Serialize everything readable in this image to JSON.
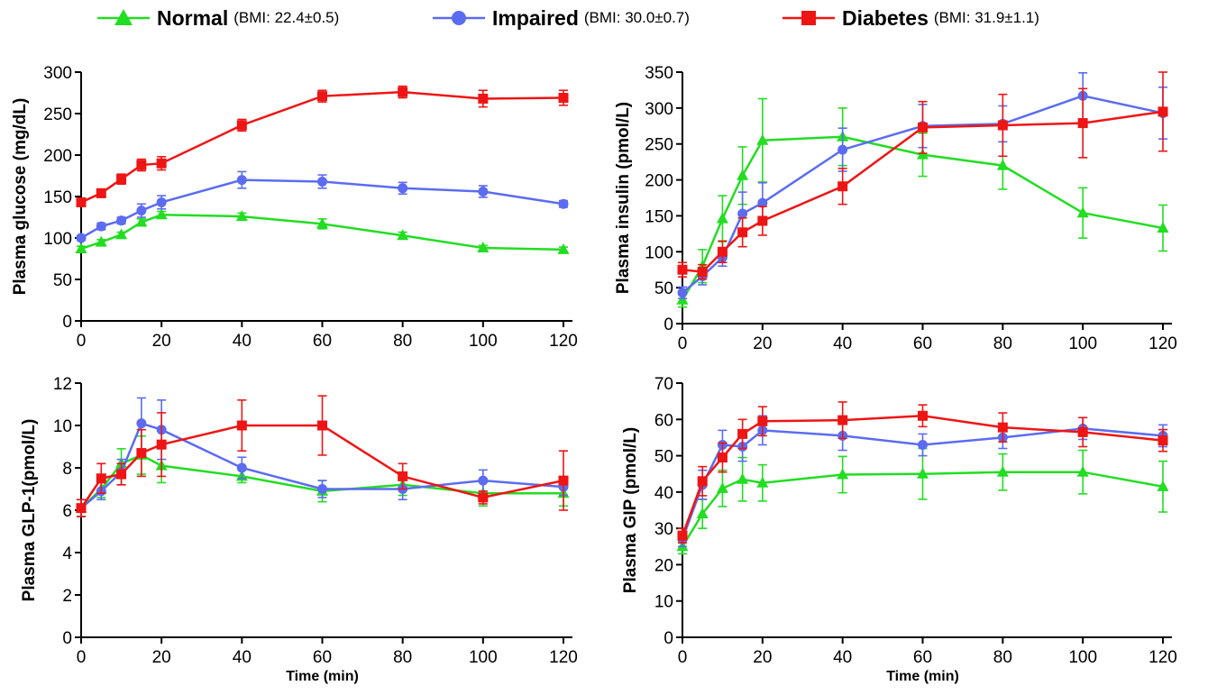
{
  "colors": {
    "normal": "#22dd22",
    "impaired": "#5b6cf0",
    "diabetes": "#ee1515"
  },
  "legend": [
    {
      "name": "Normal",
      "bmi": "(BMI: 22.4±0.5)",
      "color": "#22dd22",
      "marker": "triangle"
    },
    {
      "name": "Impaired",
      "bmi": "(BMI: 30.0±0.7)",
      "color": "#5b6cf0",
      "marker": "circle"
    },
    {
      "name": "Diabetes",
      "bmi": "(BMI: 31.9±1.1)",
      "color": "#ee1515",
      "marker": "square"
    }
  ],
  "chart_data": [
    {
      "type": "line",
      "ylabel": "Plasma glucose (mg/dL)",
      "xlabel": "",
      "xlim": [
        0,
        120
      ],
      "xticks": [
        0,
        20,
        40,
        60,
        80,
        100,
        120
      ],
      "ylim": [
        0,
        300
      ],
      "yticks": [
        0,
        50,
        100,
        150,
        200,
        250,
        300
      ],
      "x": [
        0,
        5,
        10,
        15,
        20,
        40,
        60,
        80,
        100,
        120
      ],
      "series": [
        {
          "name": "Normal",
          "values": [
            87,
            95,
            104,
            119,
            128,
            126,
            117,
            103,
            88,
            86
          ],
          "errors": [
            3,
            3,
            3,
            4,
            4,
            4,
            6,
            4,
            3,
            3
          ]
        },
        {
          "name": "Impaired",
          "values": [
            100,
            114,
            121,
            133,
            143,
            170,
            168,
            160,
            156,
            141
          ],
          "errors": [
            3,
            4,
            4,
            8,
            8,
            10,
            8,
            7,
            7,
            4
          ]
        },
        {
          "name": "Diabetes",
          "values": [
            143,
            154,
            171,
            188,
            190,
            236,
            271,
            276,
            268,
            269
          ],
          "errors": [
            4,
            5,
            6,
            7,
            8,
            7,
            7,
            7,
            10,
            9
          ]
        }
      ]
    },
    {
      "type": "line",
      "ylabel": "Plasma insulin (pmol/L)",
      "xlabel": "",
      "xlim": [
        0,
        120
      ],
      "xticks": [
        0,
        20,
        40,
        60,
        80,
        100,
        120
      ],
      "ylim": [
        0,
        350
      ],
      "yticks": [
        0,
        50,
        100,
        150,
        200,
        250,
        300,
        350
      ],
      "x": [
        0,
        5,
        10,
        15,
        20,
        40,
        60,
        80,
        100,
        120
      ],
      "series": [
        {
          "name": "Normal",
          "values": [
            33,
            80,
            146,
            206,
            255,
            260,
            235,
            220,
            154,
            133
          ],
          "errors": [
            10,
            23,
            32,
            40,
            58,
            40,
            30,
            33,
            35,
            32
          ]
        },
        {
          "name": "Impaired",
          "values": [
            43,
            66,
            92,
            153,
            168,
            242,
            275,
            278,
            317,
            293
          ],
          "errors": [
            8,
            12,
            12,
            30,
            28,
            30,
            30,
            25,
            32,
            36
          ]
        },
        {
          "name": "Diabetes",
          "values": [
            75,
            72,
            100,
            127,
            143,
            191,
            273,
            276,
            279,
            295
          ],
          "errors": [
            10,
            10,
            15,
            20,
            20,
            25,
            36,
            43,
            48,
            55
          ]
        }
      ]
    },
    {
      "type": "line",
      "ylabel": "Plasma GLP-1(pmol/L)",
      "xlabel": "Time (min)",
      "xlim": [
        0,
        120
      ],
      "xticks": [
        0,
        20,
        40,
        60,
        80,
        100,
        120
      ],
      "ylim": [
        0,
        12
      ],
      "yticks": [
        0,
        2,
        4,
        6,
        8,
        10,
        12
      ],
      "x": [
        0,
        5,
        10,
        15,
        20,
        40,
        60,
        80,
        100,
        120
      ],
      "series": [
        {
          "name": "Normal",
          "values": [
            6.1,
            7.0,
            8.2,
            8.6,
            8.1,
            7.6,
            6.9,
            7.2,
            6.8,
            6.8
          ],
          "errors": [
            0.4,
            0.4,
            0.7,
            0.9,
            0.8,
            0.3,
            0.5,
            0.5,
            0.6,
            0.6
          ]
        },
        {
          "name": "Impaired",
          "values": [
            6.1,
            6.9,
            7.8,
            10.1,
            9.8,
            8.0,
            7.0,
            7.0,
            7.4,
            7.1
          ],
          "errors": [
            0.4,
            0.4,
            0.6,
            1.2,
            1.4,
            0.5,
            0.4,
            0.5,
            0.5,
            0.4
          ]
        },
        {
          "name": "Diabetes",
          "values": [
            6.1,
            7.5,
            7.7,
            8.7,
            9.1,
            10.0,
            10.0,
            7.6,
            6.6,
            7.4
          ],
          "errors": [
            0.4,
            0.7,
            0.5,
            1.1,
            1.5,
            1.2,
            1.4,
            0.6,
            0.3,
            1.4
          ]
        }
      ]
    },
    {
      "type": "line",
      "ylabel": "Plasma GIP (pmol/L)",
      "xlabel": "Time (min)",
      "xlim": [
        0,
        120
      ],
      "xticks": [
        0,
        20,
        40,
        60,
        80,
        100,
        120
      ],
      "ylim": [
        0,
        70
      ],
      "yticks": [
        0,
        10,
        20,
        30,
        40,
        50,
        60,
        70
      ],
      "x": [
        0,
        5,
        10,
        15,
        20,
        40,
        60,
        80,
        100,
        120
      ],
      "series": [
        {
          "name": "Normal",
          "values": [
            25,
            34,
            41,
            43.5,
            42.5,
            44.8,
            45,
            45.5,
            45.5,
            41.5
          ],
          "errors": [
            2,
            4,
            5,
            6,
            5,
            5,
            7,
            5,
            6,
            7
          ]
        },
        {
          "name": "Impaired",
          "values": [
            27,
            42,
            53,
            52.5,
            57,
            55.5,
            53,
            55,
            57.5,
            55.5
          ],
          "errors": [
            2,
            4,
            4,
            4,
            4,
            4,
            3,
            3,
            3,
            3
          ]
        },
        {
          "name": "Diabetes",
          "values": [
            28,
            43,
            49.5,
            56,
            59.5,
            59.8,
            61,
            57.8,
            56.5,
            54.2
          ],
          "errors": [
            2,
            4,
            4,
            4,
            4,
            5,
            3,
            4,
            4,
            3
          ]
        }
      ]
    }
  ]
}
